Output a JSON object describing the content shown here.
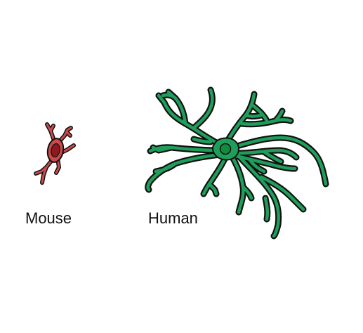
{
  "labels": {
    "mouse": "Mouse",
    "human": "Human"
  },
  "colors": {
    "mouse_cell_fill": "#c94a4a",
    "mouse_nucleus_fill": "#8e1a1f",
    "human_cell_fill": "#1f9e5b",
    "human_nucleus_fill": "#138a3e",
    "outline": "#111111",
    "background": "#ffffff"
  }
}
